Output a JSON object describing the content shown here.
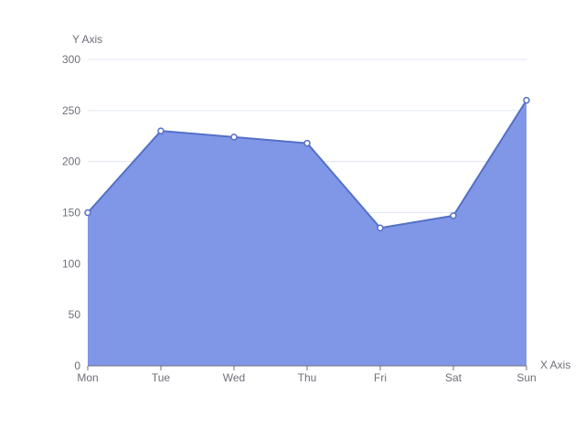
{
  "chart_data": {
    "type": "area",
    "xlabel": "X Axis",
    "ylabel": "Y Axis",
    "categories": [
      "Mon",
      "Tue",
      "Wed",
      "Thu",
      "Fri",
      "Sat",
      "Sun"
    ],
    "series": [
      {
        "values": [
          150,
          230,
          224,
          218,
          135,
          147,
          260
        ]
      }
    ],
    "ylim": [
      0,
      300
    ],
    "yticks": [
      "0",
      "50",
      "100",
      "150",
      "200",
      "250",
      "300"
    ],
    "grid": "horizontal",
    "colors": {
      "line": "#5470c6",
      "area": "#8097e8",
      "grid": "#e0e6f1",
      "axis": "#6e7079",
      "point_fill": "#ffffff"
    }
  }
}
